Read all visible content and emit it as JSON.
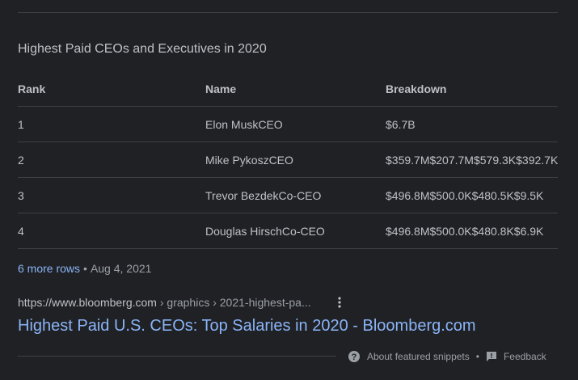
{
  "snippet": {
    "title": "Highest Paid CEOs and Executives in 2020",
    "table": {
      "headers": [
        "Rank",
        "Name",
        "Breakdown"
      ],
      "rows": [
        [
          "1",
          "Elon MuskCEO",
          "$6.7B"
        ],
        [
          "2",
          "Mike PykoszCEO",
          "$359.7M$207.7M$579.3K$392.7K"
        ],
        [
          "3",
          "Trevor BezdekCo-CEO",
          "$496.8M$500.0K$480.5K$9.5K"
        ],
        [
          "4",
          "Douglas HirschCo-CEO",
          "$496.8M$500.0K$480.8K$6.9K"
        ]
      ]
    },
    "more_rows": "6 more rows",
    "separator": "•",
    "date": "Aug 4, 2021"
  },
  "result": {
    "domain": "https://www.bloomberg.com",
    "path": " › graphics › 2021-highest-pa...",
    "title": "Highest Paid U.S. CEOs: Top Salaries in 2020 - Bloomberg.com"
  },
  "footer": {
    "about_label": "About featured snippets",
    "dot": "•",
    "feedback_label": "Feedback"
  },
  "icons": {
    "about": "help-circle-icon",
    "feedback": "feedback-icon",
    "menu": "more-vert-icon"
  },
  "colors": {
    "background": "#202124",
    "text": "#bdc1c6",
    "link": "#8ab4f8",
    "muted": "#9aa0a6",
    "divider": "#3c4043"
  }
}
